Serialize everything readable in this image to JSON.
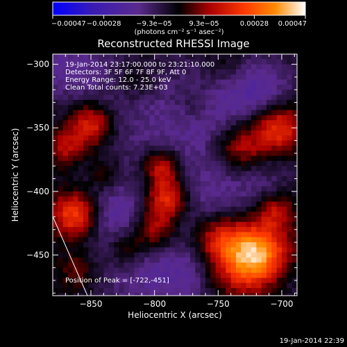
{
  "chart_data": {
    "type": "heatmap",
    "title": "Reconstructed RHESSI Image",
    "xlabel": "Heliocentric X (arcsec)",
    "ylabel": "Heliocentric Y (arcsec)",
    "xlim": [
      -880,
      -688
    ],
    "ylim": [
      -482,
      -292
    ],
    "x_ticks": [
      -850,
      -800,
      -750,
      -700
    ],
    "x_tick_labels": [
      "−850",
      "−800",
      "−750",
      "−700"
    ],
    "y_ticks": [
      -300,
      -350,
      -400,
      -450
    ],
    "y_tick_labels": [
      "−300",
      "−350",
      "−400",
      "−450"
    ],
    "colorbar": {
      "ticks": [
        -0.00047,
        -0.00028,
        -9.3e-05,
        9.3e-05,
        0.00028,
        0.00047
      ],
      "tick_labels": [
        "−0.00047",
        "−0.00028",
        "−9.3e−05",
        "9.3e−05",
        "0.00028",
        "0.00047"
      ],
      "range": [
        -0.00047,
        0.00047
      ],
      "unit_label": "(photons cm⁻² s⁻¹ asec⁻²)",
      "colors": [
        "#0000ff",
        "#3a1cb4",
        "#5a2a8c",
        "#000000",
        "#aa0000",
        "#ff3a00",
        "#ff8a00",
        "#ffffff"
      ]
    },
    "annotations": {
      "time_range": "19-Jan-2014 23:17:00.000 to 23:21:10.000",
      "detectors": "Detectors: 3F 5F 6F 7F 8F 9F, Att 0",
      "energy": "Energy Range: 12.0 - 25.0 keV",
      "method": "Clean     Total counts: 7.23E+03",
      "peak": "Position of Peak = [-722,-451]"
    },
    "peak_position": [
      -722,
      -451
    ],
    "sources": [
      {
        "x": -722,
        "y": -451,
        "intensity": 0.00047,
        "width": 18
      },
      {
        "x": -752,
        "y": -438,
        "intensity": 0.0002,
        "width": 14
      },
      {
        "x": -790,
        "y": -405,
        "intensity": 0.0003,
        "width": 12
      },
      {
        "x": -795,
        "y": -380,
        "intensity": 0.00022,
        "width": 10
      },
      {
        "x": -800,
        "y": -430,
        "intensity": 0.0002,
        "width": 11
      },
      {
        "x": -862,
        "y": -418,
        "intensity": 0.00032,
        "width": 13
      },
      {
        "x": -838,
        "y": -388,
        "intensity": 0.00012,
        "width": 10
      },
      {
        "x": -703,
        "y": -350,
        "intensity": 0.00028,
        "width": 14
      },
      {
        "x": -732,
        "y": -365,
        "intensity": 0.00022,
        "width": 14
      },
      {
        "x": -850,
        "y": -347,
        "intensity": 0.00025,
        "width": 12
      },
      {
        "x": -870,
        "y": -365,
        "intensity": 0.00016,
        "width": 10
      },
      {
        "x": -815,
        "y": -312,
        "intensity": 0.0001,
        "width": 14
      },
      {
        "x": -745,
        "y": -300,
        "intensity": 8e-05,
        "width": 14
      },
      {
        "x": -770,
        "y": -330,
        "intensity": 8e-05,
        "width": 12
      },
      {
        "x": -860,
        "y": -462,
        "intensity": 0.0001,
        "width": 10
      },
      {
        "x": -822,
        "y": -445,
        "intensity": 0.00014,
        "width": 10
      },
      {
        "x": -705,
        "y": -415,
        "intensity": 0.00018,
        "width": 10
      },
      {
        "x": -750,
        "y": -470,
        "intensity": 6e-05,
        "width": 12
      },
      {
        "x": -840,
        "y": -310,
        "intensity": -8e-05,
        "width": 30
      },
      {
        "x": -790,
        "y": -350,
        "intensity": -0.0001,
        "width": 35
      },
      {
        "x": -745,
        "y": -330,
        "intensity": -0.0001,
        "width": 30
      },
      {
        "x": -835,
        "y": -415,
        "intensity": -0.00016,
        "width": 22
      },
      {
        "x": -765,
        "y": -410,
        "intensity": -0.0001,
        "width": 22
      },
      {
        "x": -720,
        "y": -395,
        "intensity": -0.0001,
        "width": 22
      },
      {
        "x": -810,
        "y": -470,
        "intensity": -0.00012,
        "width": 25
      },
      {
        "x": -770,
        "y": -465,
        "intensity": -0.00012,
        "width": 20
      },
      {
        "x": -875,
        "y": -300,
        "intensity": -0.0001,
        "width": 20
      },
      {
        "x": -715,
        "y": -320,
        "intensity": -0.00012,
        "width": 20
      },
      {
        "x": -700,
        "y": -470,
        "intensity": -8e-05,
        "width": 15
      }
    ]
  },
  "footer": {
    "timestamp": "19-Jan-2014 22:39"
  }
}
